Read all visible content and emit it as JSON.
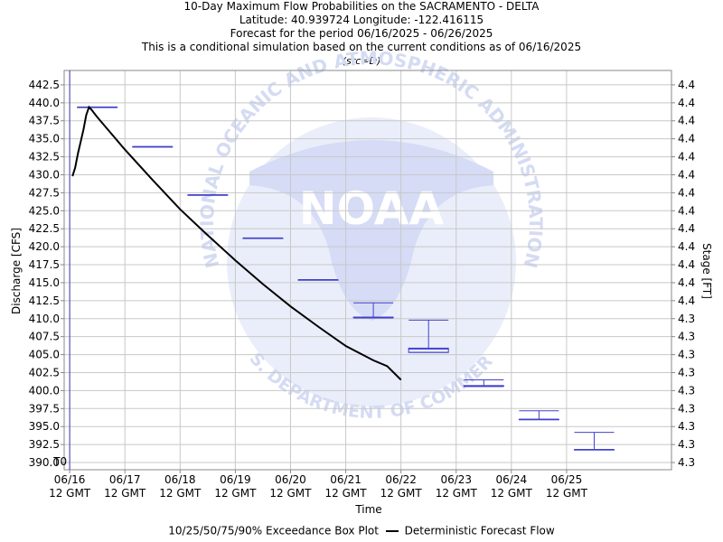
{
  "chart_data": {
    "type": "line",
    "title_lines": [
      "10-Day Maximum Flow Probabilities on the SACRAMENTO - DELTA",
      "Latitude: 40.939724 Longitude: -122.416115",
      "Forecast for the period 06/16/2025 - 06/26/2025",
      "This is a conditional simulation based on the current conditions as of 06/16/2025"
    ],
    "subtitle": "(src=D)",
    "xlabel": "Time",
    "ylabel": "Discharge [CFS]",
    "ylabel_right": "Stage [FT]",
    "ylim": [
      389.0,
      444.5
    ],
    "xlim": [
      15.9,
      26.9
    ],
    "y_ticks": [
      390.0,
      392.5,
      395.0,
      397.5,
      400.0,
      402.5,
      405.0,
      407.5,
      410.0,
      412.5,
      415.0,
      417.5,
      420.0,
      422.5,
      425.0,
      427.5,
      430.0,
      432.5,
      435.0,
      437.5,
      440.0,
      442.5
    ],
    "y_tick_labels": [
      "390.0",
      "392.5",
      "395.0",
      "397.5",
      "400.0",
      "402.5",
      "405.0",
      "407.5",
      "410.0",
      "412.5",
      "415.0",
      "417.5",
      "420.0",
      "422.5",
      "425.0",
      "427.5",
      "430.0",
      "432.5",
      "435.0",
      "437.5",
      "440.0",
      "442.5"
    ],
    "right_tick_labels": [
      "4.3",
      "4.3",
      "4.3",
      "4.3",
      "4.3",
      "4.3",
      "4.3",
      "4.3",
      "4.3",
      "4.4",
      "4.4",
      "4.4",
      "4.4",
      "4.4",
      "4.4",
      "4.4",
      "4.4",
      "4.4",
      "4.4",
      "4.4",
      "4.4",
      "4.4"
    ],
    "x_ticks": [
      16,
      17,
      18,
      19,
      20,
      21,
      22,
      23,
      24,
      25
    ],
    "x_tick_labels": [
      [
        "06/16",
        "12 GMT"
      ],
      [
        "06/17",
        "12 GMT"
      ],
      [
        "06/18",
        "12 GMT"
      ],
      [
        "06/19",
        "12 GMT"
      ],
      [
        "06/20",
        "12 GMT"
      ],
      [
        "06/21",
        "12 GMT"
      ],
      [
        "06/22",
        "12 GMT"
      ],
      [
        "06/23",
        "12 GMT"
      ],
      [
        "06/24",
        "12 GMT"
      ],
      [
        "06/25",
        "12 GMT"
      ]
    ],
    "t0_label": "T0",
    "t0_x": 16.0,
    "grid": true,
    "legend_position": "bottom",
    "colors": {
      "box": "#4040cc",
      "line": "#000000",
      "t0": "#3a3ab0",
      "grid": "#c8c8c8",
      "axis": "#888888"
    },
    "box_plots": [
      {
        "x": 16.5,
        "p10": 439.4,
        "p25": 439.4,
        "p50": 439.4,
        "p75": 439.4,
        "p90": 439.4
      },
      {
        "x": 17.5,
        "p10": 433.9,
        "p25": 433.9,
        "p50": 433.9,
        "p75": 433.9,
        "p90": 433.9
      },
      {
        "x": 18.5,
        "p10": 427.2,
        "p25": 427.2,
        "p50": 427.2,
        "p75": 427.2,
        "p90": 427.2
      },
      {
        "x": 19.5,
        "p10": 421.2,
        "p25": 421.2,
        "p50": 421.2,
        "p75": 421.2,
        "p90": 421.2
      },
      {
        "x": 20.5,
        "p10": 415.4,
        "p25": 415.4,
        "p50": 415.4,
        "p75": 415.4,
        "p90": 415.4
      },
      {
        "x": 21.5,
        "p10": 410.1,
        "p25": 410.2,
        "p50": 410.2,
        "p75": 410.2,
        "p90": 412.2
      },
      {
        "x": 22.5,
        "p10": 405.3,
        "p25": 405.3,
        "p50": 405.8,
        "p75": 405.9,
        "p90": 409.8
      },
      {
        "x": 23.5,
        "p10": 400.6,
        "p25": 400.6,
        "p50": 400.6,
        "p75": 400.7,
        "p90": 401.5
      },
      {
        "x": 24.5,
        "p10": 396.0,
        "p25": 396.0,
        "p50": 396.0,
        "p75": 396.0,
        "p90": 397.2
      },
      {
        "x": 25.5,
        "p10": 391.8,
        "p25": 391.8,
        "p50": 391.8,
        "p75": 391.8,
        "p90": 394.2
      }
    ],
    "series": [
      {
        "name": "Deterministic Forecast Flow",
        "x": [
          16.05,
          16.1,
          16.15,
          16.2,
          16.25,
          16.3,
          16.35,
          16.4,
          16.5,
          17.0,
          17.5,
          18.0,
          18.5,
          19.0,
          19.5,
          20.0,
          20.5,
          21.0,
          21.5,
          21.75,
          22.0
        ],
        "y": [
          429.8,
          431.0,
          433.0,
          434.6,
          436.3,
          438.3,
          439.4,
          439.0,
          438.0,
          433.5,
          429.3,
          425.2,
          421.6,
          418.1,
          414.8,
          411.7,
          408.9,
          406.2,
          404.2,
          403.4,
          401.5
        ]
      }
    ]
  },
  "legend": {
    "boxplot_label": "10/25/50/75/90% Exceedance Box Plot",
    "line_label": "Deterministic Forecast Flow"
  },
  "watermark": {
    "arc_top": "NATIONAL OCEANIC AND ATMOSPHERIC ADMINISTRATION",
    "arc_bottom": "U.S. DEPARTMENT OF COMMERCE",
    "center": "NOAA"
  }
}
